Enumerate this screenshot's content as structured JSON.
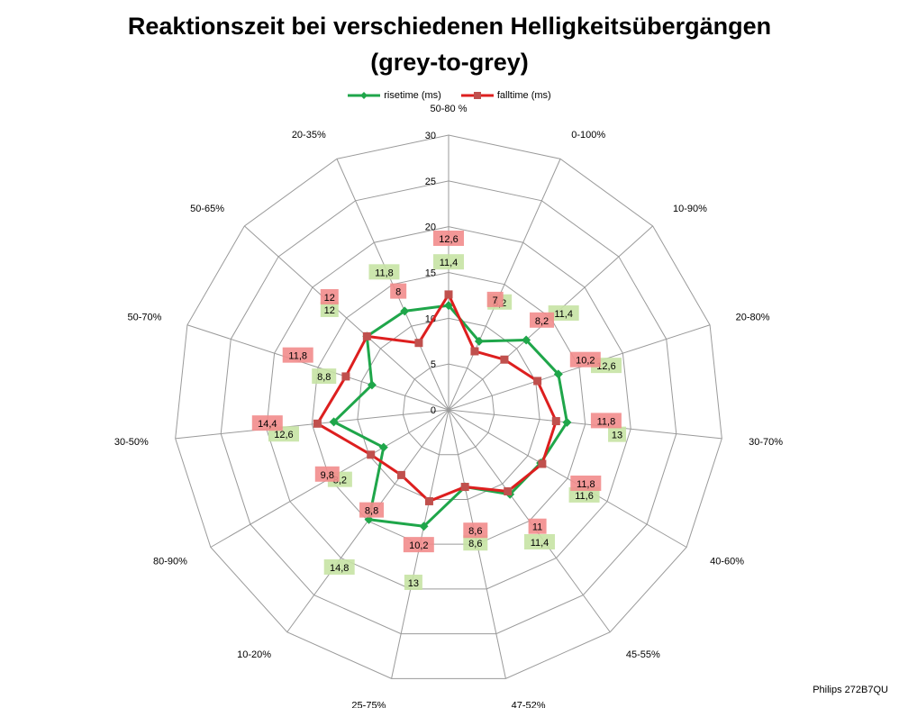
{
  "chart_data": {
    "type": "radar",
    "title_line1": "Reaktionszeit bei verschiedenen Helligkeitsübergängen",
    "title_line2": "(grey-to-grey)",
    "categories": [
      "50-80 %",
      "0-100%",
      "10-90%",
      "20-80%",
      "30-70%",
      "40-60%",
      "45-55%",
      "47-52%",
      "25-75%",
      "10-20%",
      "80-90%",
      "30-50%",
      "50-70%",
      "50-65%",
      "20-35%"
    ],
    "series": [
      {
        "name": "risetime (ms)",
        "color": "#1fa64a",
        "label_bg": "#c6e3a4",
        "values": [
          11.4,
          8.2,
          11.4,
          12.6,
          13,
          11.6,
          11.4,
          8.6,
          13,
          14.8,
          8.2,
          12.6,
          8.8,
          12,
          11.8
        ]
      },
      {
        "name": "falltime (ms)",
        "color": "#dd1f1f",
        "label_bg": "#f28c8c",
        "values": [
          12.6,
          7,
          8.2,
          10.2,
          11.8,
          11.8,
          11,
          8.6,
          10.2,
          8.8,
          9.8,
          14.4,
          11.8,
          12,
          8
        ]
      }
    ],
    "rticks": [
      0,
      5,
      10,
      15,
      20,
      25,
      30
    ],
    "rlim": [
      0,
      30
    ],
    "display_labels": {
      "risetime": [
        "11,4",
        "8,2",
        "11,4",
        "12,6",
        "13",
        "11,6",
        "11,4",
        "8,6",
        "13",
        "14,8",
        "8,2",
        "12,6",
        "8,8",
        "12",
        "11,8"
      ],
      "falltime": [
        "12,6",
        "7",
        "8,2",
        "10,2",
        "11,8",
        "11,8",
        "11",
        "8,6",
        "10,2",
        "8,8",
        "9,8",
        "14,4",
        "11,8",
        "12",
        "8"
      ]
    },
    "legend_position": "top",
    "grid": true
  },
  "footer": "Philips 272B7QU"
}
